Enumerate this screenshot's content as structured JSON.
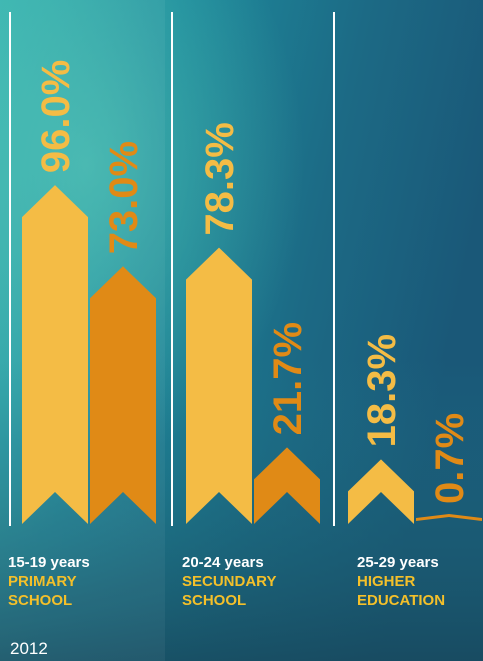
{
  "colors": {
    "series_light": "#f4bc45",
    "series_dark": "#e08a16",
    "text_white": "#ffffff",
    "text_level": "#f4c02a"
  },
  "year_label": "2012",
  "chart_data": {
    "type": "bar",
    "title": "",
    "categories": [
      {
        "age": "15-19 years",
        "level_line1": "PRIMARY",
        "level_line2": "SCHOOL"
      },
      {
        "age": "20-24 years",
        "level_line1": "SECUNDARY",
        "level_line2": "SCHOOL"
      },
      {
        "age": "25-29 years",
        "level_line1": "HIGHER",
        "level_line2": "EDUCATION"
      }
    ],
    "series": [
      {
        "values": [
          96.0,
          78.3,
          18.3
        ],
        "labels": [
          "96.0%",
          "78.3%",
          "18.3%"
        ]
      },
      {
        "values": [
          73.0,
          21.7,
          0.7
        ],
        "labels": [
          "73.0%",
          "21.7%",
          "0.7%"
        ]
      }
    ],
    "ylim": [
      0,
      100
    ],
    "grid": false,
    "legend": "none"
  }
}
